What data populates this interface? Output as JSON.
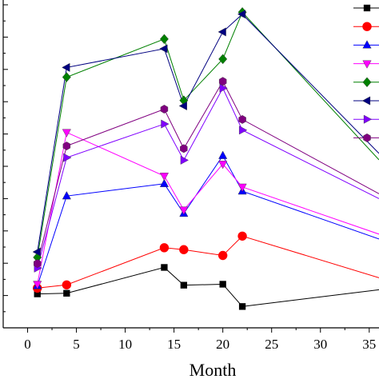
{
  "chart_data": {
    "type": "line",
    "xlabel": "Month",
    "ylabel": "",
    "xlim": [
      -2.5,
      36
    ],
    "ylim": [
      0,
      100
    ],
    "xticks": [
      0,
      5,
      10,
      15,
      20,
      25,
      30,
      35
    ],
    "grid": false,
    "legend_position": "top-right",
    "series": [
      {
        "color": "#000000",
        "marker": "square",
        "x": [
          1,
          4,
          14,
          16,
          20,
          22,
          36
        ],
        "y": [
          10.5,
          10.7,
          18.7,
          13.2,
          13.5,
          6.6,
          11.8
        ]
      },
      {
        "color": "#ff0000",
        "marker": "circle",
        "x": [
          1,
          4,
          14,
          16,
          20,
          22,
          36
        ],
        "y": [
          12.3,
          13.3,
          24.8,
          24.2,
          22.4,
          28.4,
          15.5
        ]
      },
      {
        "color": "#0000ff",
        "marker": "triangle-up",
        "x": [
          1,
          4,
          14,
          16,
          20,
          22,
          36
        ],
        "y": [
          13.0,
          40.8,
          44.6,
          35.4,
          53.3,
          42.3,
          27.5
        ]
      },
      {
        "color": "#ff00ff",
        "marker": "triangle-down",
        "x": [
          1,
          4,
          14,
          16,
          20,
          22,
          36
        ],
        "y": [
          13.5,
          60.5,
          47.0,
          36.5,
          50.7,
          43.6,
          29.0
        ]
      },
      {
        "color": "#008000",
        "marker": "diamond",
        "x": [
          1,
          4,
          14,
          16,
          20,
          22,
          36
        ],
        "y": [
          21.8,
          77.6,
          89.4,
          70.4,
          83.2,
          97.7,
          52.0
        ]
      },
      {
        "color": "#000080",
        "marker": "triangle-left",
        "x": [
          1,
          4,
          14,
          16,
          20,
          22,
          36
        ],
        "y": [
          23.5,
          80.6,
          86.4,
          68.7,
          91.6,
          97.1,
          54.0
        ]
      },
      {
        "color": "#8000ff",
        "marker": "triangle-right",
        "x": [
          1,
          4,
          14,
          16,
          20,
          22,
          36
        ],
        "y": [
          18.5,
          52.7,
          63.1,
          51.9,
          74.2,
          61.2,
          40.0
        ]
      },
      {
        "color": "#800080",
        "marker": "hexagon",
        "x": [
          1,
          4,
          14,
          16,
          20,
          22,
          36
        ],
        "y": [
          19.9,
          56.3,
          67.7,
          55.5,
          76.3,
          64.5,
          41.5
        ]
      }
    ]
  }
}
